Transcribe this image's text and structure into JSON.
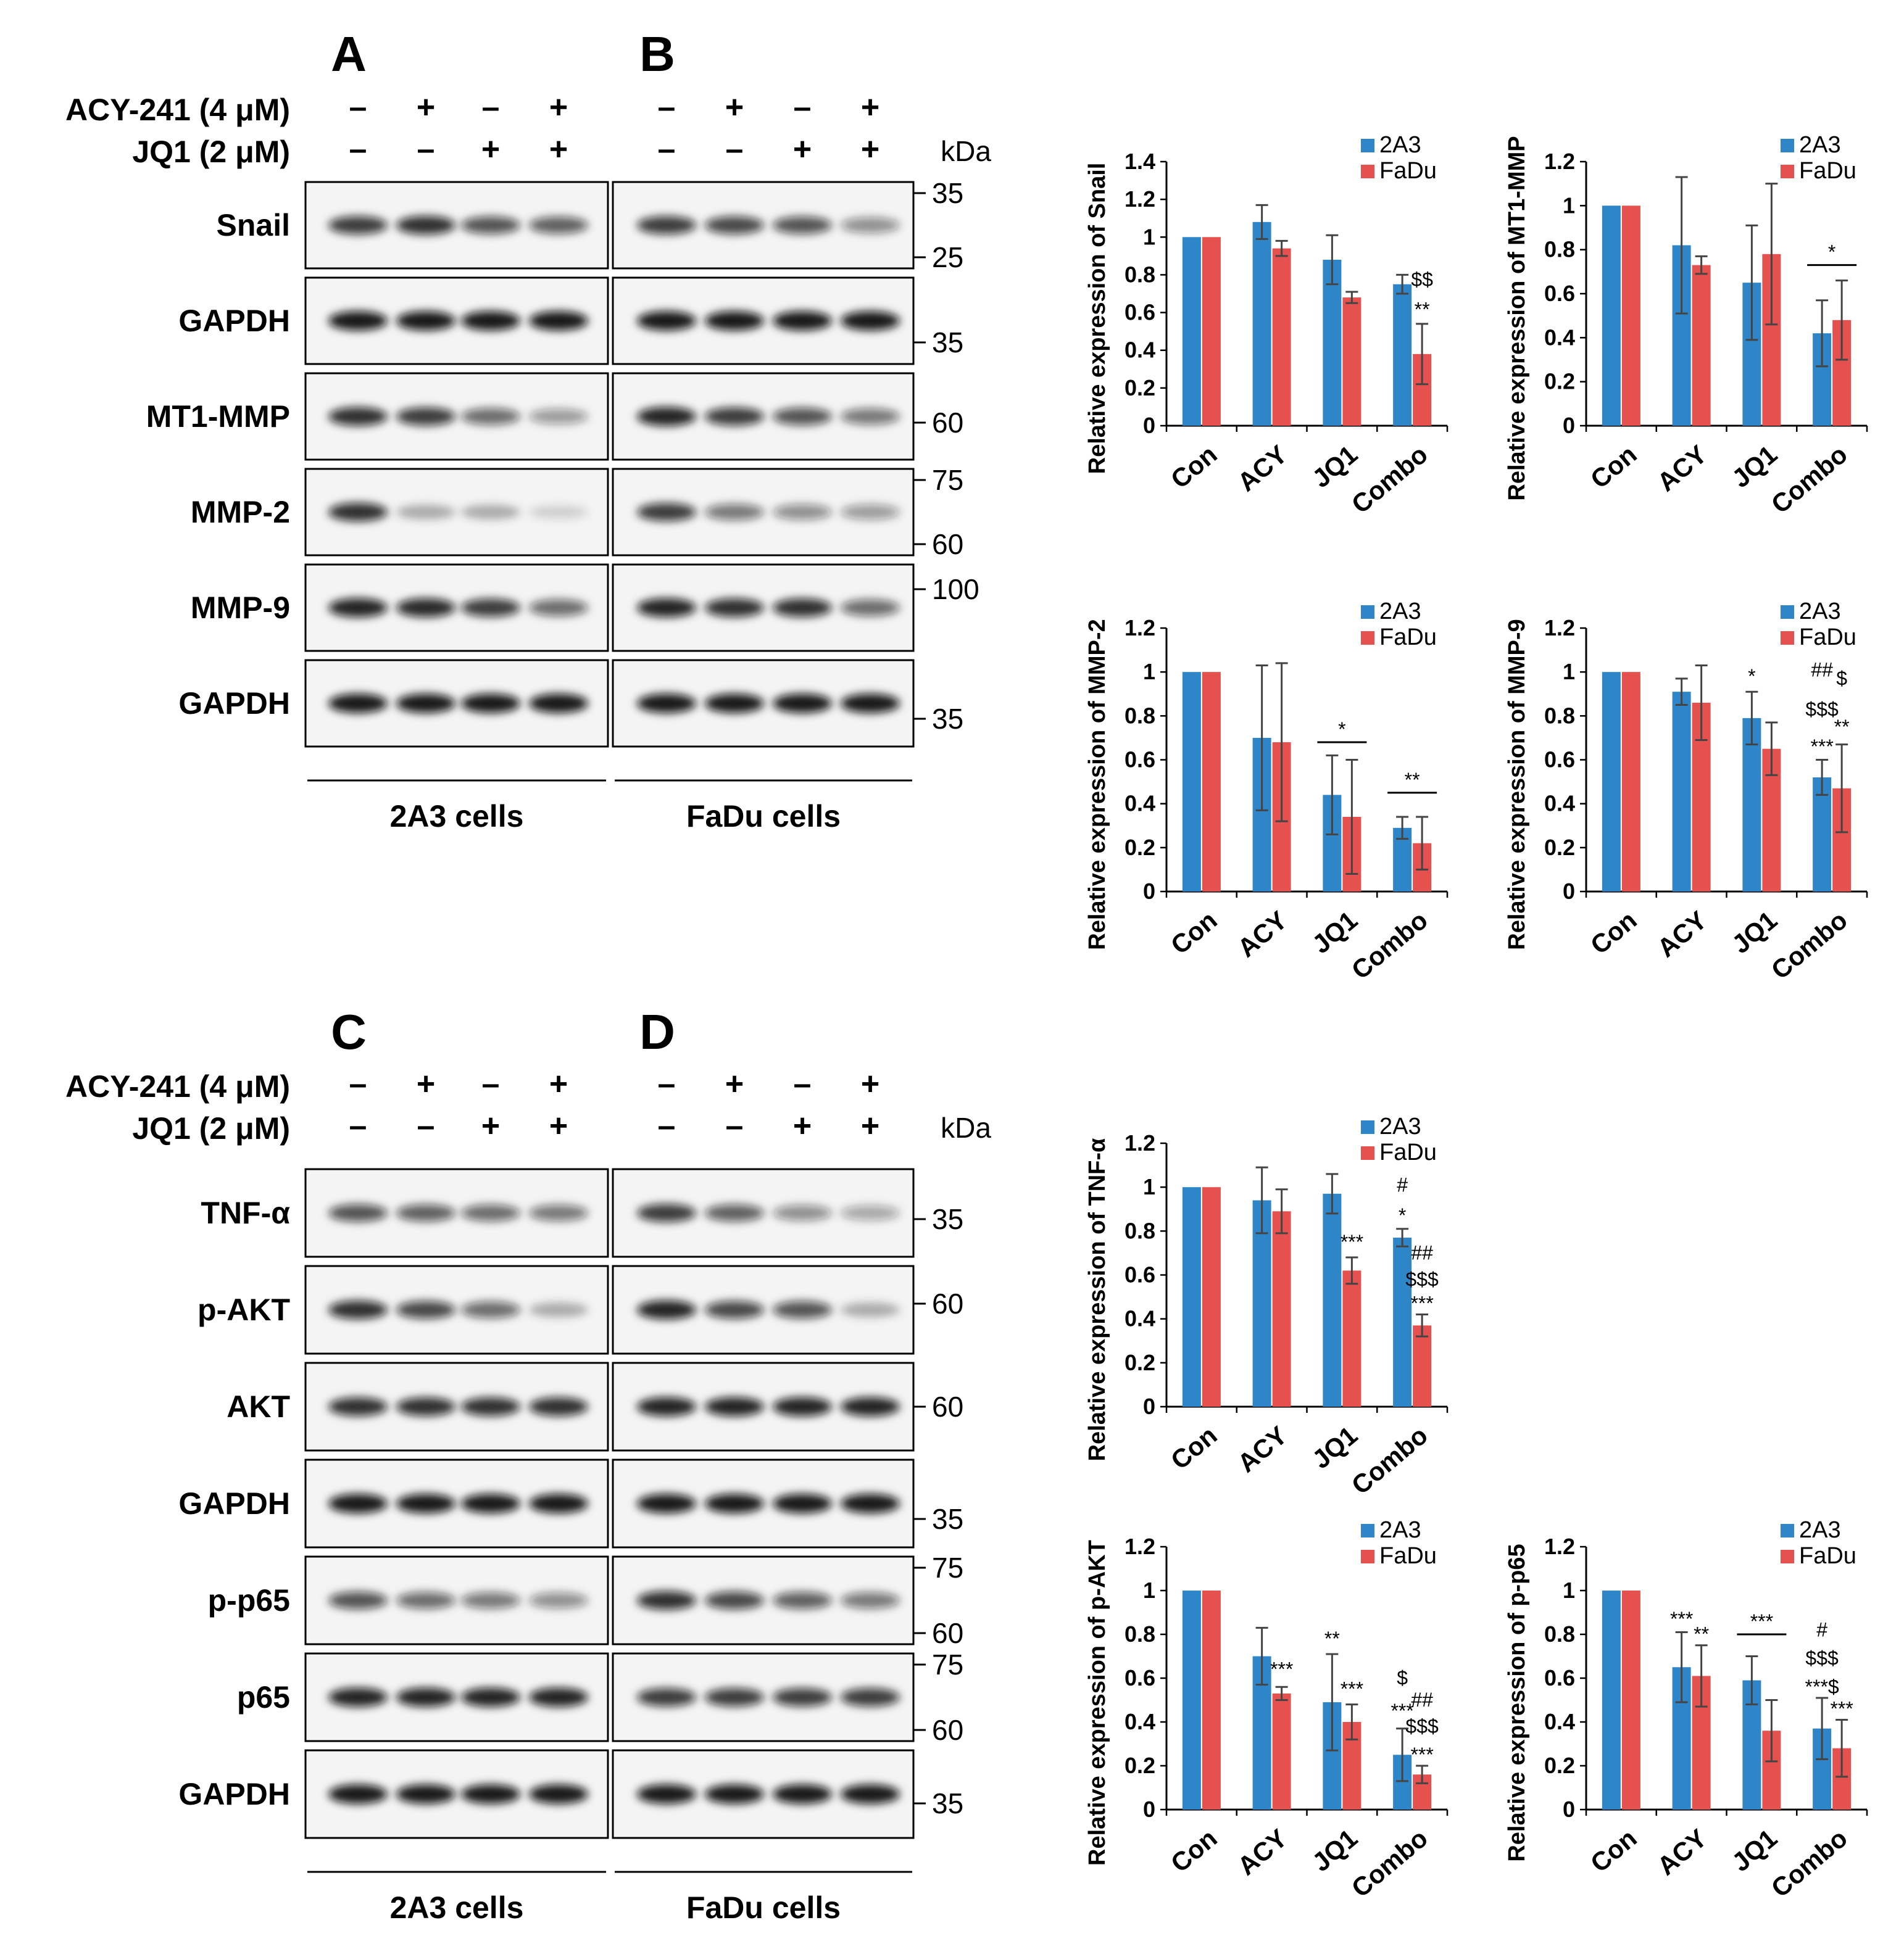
{
  "blot_panels": [
    {
      "rows_top": [
        "ACY-241  (4 μM)",
        "JQ1 (2 μM)"
      ],
      "signs_acy": [
        "–",
        "+",
        "–",
        "+"
      ],
      "signs_jq1": [
        "–",
        "–",
        "+",
        "+"
      ],
      "kda_header": "kDa",
      "letters": [
        "A",
        "B"
      ],
      "cell_labels": [
        "2A3 cells",
        "FaDu cells"
      ],
      "proteins": [
        "Snail",
        "GAPDH",
        "MT1-MMP",
        "MMP-2",
        "MMP-9",
        "GAPDH"
      ],
      "markers": [
        [
          "35",
          "25"
        ],
        [
          "35"
        ],
        [
          "60"
        ],
        [
          "75",
          "60"
        ],
        [
          "100"
        ],
        [
          "35"
        ]
      ],
      "band_intensity_left": [
        [
          0.8,
          0.85,
          0.7,
          0.65
        ],
        [
          0.95,
          0.95,
          0.95,
          0.95
        ],
        [
          0.85,
          0.8,
          0.6,
          0.4
        ],
        [
          0.85,
          0.3,
          0.3,
          0.15
        ],
        [
          0.9,
          0.88,
          0.8,
          0.6
        ],
        [
          0.95,
          0.95,
          0.95,
          0.95
        ]
      ],
      "band_intensity_right": [
        [
          0.8,
          0.75,
          0.7,
          0.45
        ],
        [
          0.95,
          0.95,
          0.95,
          0.95
        ],
        [
          0.9,
          0.8,
          0.7,
          0.55
        ],
        [
          0.8,
          0.55,
          0.45,
          0.4
        ],
        [
          0.9,
          0.85,
          0.85,
          0.6
        ],
        [
          0.95,
          0.95,
          0.95,
          0.95
        ]
      ]
    },
    {
      "rows_top": [
        "ACY-241  (4 μM)",
        "JQ1 (2 μM)"
      ],
      "signs_acy": [
        "–",
        "+",
        "–",
        "+"
      ],
      "signs_jq1": [
        "–",
        "–",
        "+",
        "+"
      ],
      "kda_header": "kDa",
      "letters": [
        "C",
        "D"
      ],
      "cell_labels": [
        "2A3 cells",
        "FaDu cells"
      ],
      "proteins": [
        "TNF-α",
        "p-AKT",
        "AKT",
        "GAPDH",
        "p-p65",
        "p65",
        "GAPDH"
      ],
      "markers": [
        [
          "35"
        ],
        [
          "60"
        ],
        [
          "60"
        ],
        [
          "35"
        ],
        [
          "75",
          "60"
        ],
        [
          "75",
          "60"
        ],
        [
          "35"
        ]
      ],
      "band_intensity_left": [
        [
          0.7,
          0.65,
          0.6,
          0.55
        ],
        [
          0.85,
          0.75,
          0.6,
          0.3
        ],
        [
          0.85,
          0.85,
          0.85,
          0.85
        ],
        [
          0.95,
          0.95,
          0.95,
          0.95
        ],
        [
          0.7,
          0.6,
          0.55,
          0.45
        ],
        [
          0.9,
          0.9,
          0.9,
          0.9
        ],
        [
          0.95,
          0.95,
          0.95,
          0.95
        ]
      ],
      "band_intensity_right": [
        [
          0.8,
          0.65,
          0.45,
          0.35
        ],
        [
          0.9,
          0.75,
          0.7,
          0.3
        ],
        [
          0.9,
          0.9,
          0.9,
          0.9
        ],
        [
          0.95,
          0.95,
          0.95,
          0.95
        ],
        [
          0.85,
          0.75,
          0.65,
          0.55
        ],
        [
          0.8,
          0.8,
          0.8,
          0.8
        ],
        [
          0.95,
          0.95,
          0.95,
          0.95
        ]
      ]
    }
  ],
  "colors": {
    "2A3": "#2E86C9",
    "FaDu": "#E5514E"
  },
  "chart_data": [
    {
      "type": "bar",
      "ylabel": "Relative expression of Snail",
      "categories": [
        "Con",
        "ACY",
        "JQ1",
        "Combo"
      ],
      "ylim": [
        0,
        1.4
      ],
      "yticks": [
        "0",
        "0.2",
        "0.4",
        "0.6",
        "0.8",
        "1",
        "1.2",
        "1.4"
      ],
      "series": [
        {
          "name": "2A3",
          "values": [
            1.0,
            1.08,
            0.88,
            0.75
          ],
          "errors": [
            0,
            0.09,
            0.13,
            0.05
          ]
        },
        {
          "name": "FaDu",
          "values": [
            1.0,
            0.94,
            0.68,
            0.38
          ],
          "errors": [
            0,
            0.04,
            0.03,
            0.16
          ]
        }
      ],
      "annotations": [
        {
          "text": "$$",
          "cat": 3,
          "side": "right",
          "y": 0.74
        },
        {
          "text": "**",
          "cat": 3,
          "side": "right",
          "y": 0.58
        }
      ],
      "brackets": [],
      "legend": "top-right"
    },
    {
      "type": "bar",
      "ylabel": "Relative expression of MT1-MMP",
      "categories": [
        "Con",
        "ACY",
        "JQ1",
        "Combo"
      ],
      "ylim": [
        0,
        1.2
      ],
      "yticks": [
        "0",
        "0.2",
        "0.4",
        "0.6",
        "0.8",
        "1",
        "1.2"
      ],
      "series": [
        {
          "name": "2A3",
          "values": [
            1.0,
            0.82,
            0.65,
            0.42
          ],
          "errors": [
            0,
            0.31,
            0.26,
            0.15
          ]
        },
        {
          "name": "FaDu",
          "values": [
            1.0,
            0.73,
            0.78,
            0.48
          ],
          "errors": [
            0,
            0.04,
            0.32,
            0.18
          ]
        }
      ],
      "annotations": [],
      "brackets": [
        {
          "cat": 3,
          "y": 0.73,
          "text": "*"
        }
      ],
      "legend": "top-right"
    },
    {
      "type": "bar",
      "ylabel": "Relative expression of MMP-2",
      "categories": [
        "Con",
        "ACY",
        "JQ1",
        "Combo"
      ],
      "ylim": [
        0,
        1.2
      ],
      "yticks": [
        "0",
        "0.2",
        "0.4",
        "0.6",
        "0.8",
        "1",
        "1.2"
      ],
      "series": [
        {
          "name": "2A3",
          "values": [
            1.0,
            0.7,
            0.44,
            0.29
          ],
          "errors": [
            0,
            0.33,
            0.18,
            0.05
          ]
        },
        {
          "name": "FaDu",
          "values": [
            1.0,
            0.68,
            0.34,
            0.22
          ],
          "errors": [
            0,
            0.36,
            0.26,
            0.12
          ]
        }
      ],
      "annotations": [],
      "brackets": [
        {
          "cat": 2,
          "y": 0.68,
          "text": "*"
        },
        {
          "cat": 3,
          "y": 0.45,
          "text": "**"
        }
      ],
      "legend": "top-right"
    },
    {
      "type": "bar",
      "ylabel": "Relative expression of MMP-9",
      "categories": [
        "Con",
        "ACY",
        "JQ1",
        "Combo"
      ],
      "ylim": [
        0,
        1.2
      ],
      "yticks": [
        "0",
        "0.2",
        "0.4",
        "0.6",
        "0.8",
        "1",
        "1.2"
      ],
      "series": [
        {
          "name": "2A3",
          "values": [
            1.0,
            0.91,
            0.79,
            0.52
          ],
          "errors": [
            0,
            0.06,
            0.12,
            0.08
          ]
        },
        {
          "name": "FaDu",
          "values": [
            1.0,
            0.86,
            0.65,
            0.47
          ],
          "errors": [
            0,
            0.17,
            0.12,
            0.2
          ]
        }
      ],
      "annotations": [
        {
          "text": "*",
          "cat": 2,
          "side": "left",
          "y": 0.95
        },
        {
          "text": "##",
          "cat": 3,
          "side": "left",
          "y": 0.98
        },
        {
          "text": "$",
          "cat": 3,
          "side": "right",
          "y": 0.94
        },
        {
          "text": "$$$",
          "cat": 3,
          "side": "left",
          "y": 0.8
        },
        {
          "text": "**",
          "cat": 3,
          "side": "right",
          "y": 0.72
        },
        {
          "text": "***",
          "cat": 3,
          "side": "left",
          "y": 0.63
        }
      ],
      "brackets": [],
      "legend": "top-right"
    },
    {
      "type": "bar",
      "ylabel": "Relative expression of TNF-α",
      "categories": [
        "Con",
        "ACY",
        "JQ1",
        "Combo"
      ],
      "ylim": [
        0,
        1.2
      ],
      "yticks": [
        "0",
        "0.2",
        "0.4",
        "0.6",
        "0.8",
        "1",
        "1.2"
      ],
      "series": [
        {
          "name": "2A3",
          "values": [
            1.0,
            0.94,
            0.97,
            0.77
          ],
          "errors": [
            0,
            0.15,
            0.09,
            0.04
          ]
        },
        {
          "name": "FaDu",
          "values": [
            1.0,
            0.89,
            0.62,
            0.37
          ],
          "errors": [
            0,
            0.1,
            0.06,
            0.05
          ]
        }
      ],
      "annotations": [
        {
          "text": "***",
          "cat": 2,
          "side": "right",
          "y": 0.72
        },
        {
          "text": "#",
          "cat": 3,
          "side": "left",
          "y": 0.98
        },
        {
          "text": "*",
          "cat": 3,
          "side": "left",
          "y": 0.84
        },
        {
          "text": "##",
          "cat": 3,
          "side": "right",
          "y": 0.67
        },
        {
          "text": "$$$",
          "cat": 3,
          "side": "right",
          "y": 0.55
        },
        {
          "text": "***",
          "cat": 3,
          "side": "right",
          "y": 0.44
        }
      ],
      "brackets": [],
      "legend": "top-right"
    },
    {
      "type": "bar",
      "ylabel": "Relative expression of p-AKT",
      "categories": [
        "Con",
        "ACY",
        "JQ1",
        "Combo"
      ],
      "ylim": [
        0,
        1.2
      ],
      "yticks": [
        "0",
        "0.2",
        "0.4",
        "0.6",
        "0.8",
        "1",
        "1.2"
      ],
      "series": [
        {
          "name": "2A3",
          "values": [
            1.0,
            0.7,
            0.49,
            0.25
          ],
          "errors": [
            0,
            0.13,
            0.22,
            0.12
          ]
        },
        {
          "name": "FaDu",
          "values": [
            1.0,
            0.53,
            0.4,
            0.16
          ],
          "errors": [
            0,
            0.03,
            0.08,
            0.04
          ]
        }
      ],
      "annotations": [
        {
          "text": "***",
          "cat": 1,
          "side": "right",
          "y": 0.61
        },
        {
          "text": "**",
          "cat": 2,
          "side": "left",
          "y": 0.75
        },
        {
          "text": "***",
          "cat": 2,
          "side": "right",
          "y": 0.52
        },
        {
          "text": "$",
          "cat": 3,
          "side": "left",
          "y": 0.57
        },
        {
          "text": "##",
          "cat": 3,
          "side": "right",
          "y": 0.47
        },
        {
          "text": "***",
          "cat": 3,
          "side": "left",
          "y": 0.42
        },
        {
          "text": "$$$",
          "cat": 3,
          "side": "right",
          "y": 0.35
        },
        {
          "text": "***",
          "cat": 3,
          "side": "right",
          "y": 0.22
        }
      ],
      "brackets": [],
      "legend": "top-right"
    },
    {
      "type": "bar",
      "ylabel": "Relative expression of p-p65",
      "categories": [
        "Con",
        "ACY",
        "JQ1",
        "Combo"
      ],
      "ylim": [
        0,
        1.2
      ],
      "yticks": [
        "0",
        "0.2",
        "0.4",
        "0.6",
        "0.8",
        "1",
        "1.2"
      ],
      "series": [
        {
          "name": "2A3",
          "values": [
            1.0,
            0.65,
            0.59,
            0.37
          ],
          "errors": [
            0,
            0.16,
            0.11,
            0.14
          ]
        },
        {
          "name": "FaDu",
          "values": [
            1.0,
            0.61,
            0.36,
            0.28
          ],
          "errors": [
            0,
            0.14,
            0.14,
            0.13
          ]
        }
      ],
      "annotations": [
        {
          "text": "***",
          "cat": 1,
          "side": "left",
          "y": 0.84
        },
        {
          "text": "**",
          "cat": 1,
          "side": "right",
          "y": 0.77
        },
        {
          "text": "#",
          "cat": 3,
          "side": "left",
          "y": 0.79
        },
        {
          "text": "$$$",
          "cat": 3,
          "side": "left",
          "y": 0.66
        },
        {
          "text": "***$",
          "cat": 3,
          "side": "left",
          "y": 0.53
        },
        {
          "text": "***",
          "cat": 3,
          "side": "right",
          "y": 0.43
        }
      ],
      "brackets": [
        {
          "cat": 2,
          "y": 0.8,
          "text": "***"
        }
      ],
      "legend": "top-right"
    }
  ]
}
